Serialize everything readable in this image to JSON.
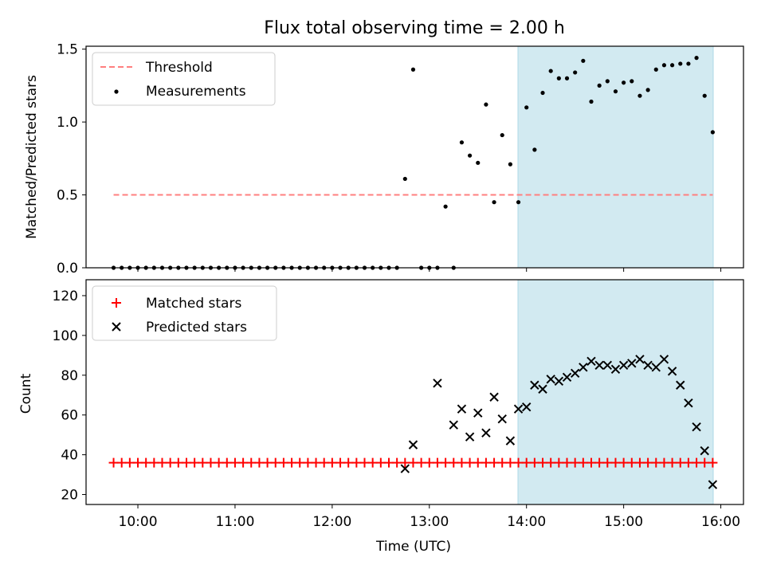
{
  "chart_data": [
    {
      "type": "scatter",
      "title": "Flux total observing time = 2.00 h",
      "ylabel": "Matched/Predicted stars",
      "xlabel": "",
      "ylim": [
        0,
        1.52
      ],
      "y_ticks": [
        "0.0",
        "0.5",
        "1.0",
        "1.5"
      ],
      "y_tick_values": [
        0,
        0.5,
        1.0,
        1.5
      ],
      "legend": {
        "placement": "upper-left",
        "entries": [
          "Threshold",
          "Measurements"
        ]
      },
      "shaded_region": {
        "x_start": "13:55",
        "x_end": "15:55",
        "color": "#add8e6"
      },
      "threshold": {
        "name": "Threshold",
        "value": 0.5,
        "x_start": "09:45",
        "x_end": "15:55",
        "color": "#ff7f7f"
      },
      "series": [
        {
          "name": "Measurements",
          "color": "#000000",
          "x": [
            "09:45",
            "09:50",
            "09:55",
            "10:00",
            "10:05",
            "10:10",
            "10:15",
            "10:20",
            "10:25",
            "10:30",
            "10:35",
            "10:40",
            "10:45",
            "10:50",
            "10:55",
            "11:00",
            "11:05",
            "11:10",
            "11:15",
            "11:20",
            "11:25",
            "11:30",
            "11:35",
            "11:40",
            "11:45",
            "11:50",
            "11:55",
            "12:00",
            "12:05",
            "12:10",
            "12:15",
            "12:20",
            "12:25",
            "12:30",
            "12:35",
            "12:40",
            "12:45",
            "12:50",
            "12:55",
            "13:00",
            "13:05",
            "13:10",
            "13:15",
            "13:20",
            "13:25",
            "13:30",
            "13:35",
            "13:40",
            "13:45",
            "13:50",
            "13:55",
            "14:00",
            "14:05",
            "14:10",
            "14:15",
            "14:20",
            "14:25",
            "14:30",
            "14:35",
            "14:40",
            "14:45",
            "14:50",
            "14:55",
            "15:00",
            "15:05",
            "15:10",
            "15:15",
            "15:20",
            "15:25",
            "15:30",
            "15:35",
            "15:40",
            "15:45",
            "15:50",
            "15:55"
          ],
          "values": [
            0,
            0,
            0,
            0,
            0,
            0,
            0,
            0,
            0,
            0,
            0,
            0,
            0,
            0,
            0,
            0,
            0,
            0,
            0,
            0,
            0,
            0,
            0,
            0,
            0,
            0,
            0,
            0,
            0,
            0,
            0,
            0,
            0,
            0,
            0,
            0,
            0.61,
            1.36,
            0,
            0,
            0,
            0.42,
            0,
            0.86,
            0.77,
            0.72,
            1.12,
            0.45,
            0.91,
            0.71,
            0.45,
            1.1,
            0.81,
            1.2,
            1.35,
            1.3,
            1.3,
            1.34,
            1.42,
            1.14,
            1.25,
            1.28,
            1.21,
            1.27,
            1.28,
            1.18,
            1.22,
            1.36,
            1.39,
            1.39,
            1.4,
            1.4,
            1.44,
            1.18,
            0.93
          ]
        }
      ]
    },
    {
      "type": "scatter",
      "title": "",
      "xlabel": "Time (UTC)",
      "ylabel": "Count",
      "xlim": [
        "09:28",
        "16:14"
      ],
      "ylim": [
        15,
        128
      ],
      "x_ticks": [
        "10:00",
        "11:00",
        "12:00",
        "13:00",
        "14:00",
        "15:00",
        "16:00"
      ],
      "y_ticks": [
        "20",
        "40",
        "60",
        "80",
        "100",
        "120"
      ],
      "y_tick_values": [
        20,
        40,
        60,
        80,
        100,
        120
      ],
      "legend": {
        "placement": "upper-left",
        "entries": [
          "Matched stars",
          "Predicted stars"
        ]
      },
      "shaded_region": {
        "x_start": "13:55",
        "x_end": "15:55",
        "color": "#add8e6"
      },
      "series": [
        {
          "name": "Matched stars",
          "marker": "+",
          "color": "#ff0000",
          "x": [
            "09:45",
            "09:50",
            "09:55",
            "10:00",
            "10:05",
            "10:10",
            "10:15",
            "10:20",
            "10:25",
            "10:30",
            "10:35",
            "10:40",
            "10:45",
            "10:50",
            "10:55",
            "11:00",
            "11:05",
            "11:10",
            "11:15",
            "11:20",
            "11:25",
            "11:30",
            "11:35",
            "11:40",
            "11:45",
            "11:50",
            "11:55",
            "12:00",
            "12:05",
            "12:10",
            "12:15",
            "12:20",
            "12:25",
            "12:30",
            "12:35",
            "12:40",
            "12:45",
            "12:50",
            "12:55",
            "13:00",
            "13:05",
            "13:10",
            "13:15",
            "13:20",
            "13:25",
            "13:30",
            "13:35",
            "13:40",
            "13:45",
            "13:50",
            "13:55",
            "14:00",
            "14:05",
            "14:10",
            "14:15",
            "14:20",
            "14:25",
            "14:30",
            "14:35",
            "14:40",
            "14:45",
            "14:50",
            "14:55",
            "15:00",
            "15:05",
            "15:10",
            "15:15",
            "15:20",
            "15:25",
            "15:30",
            "15:35",
            "15:40",
            "15:45",
            "15:50",
            "15:55"
          ],
          "values": [
            36,
            36,
            36,
            36,
            36,
            36,
            36,
            36,
            36,
            36,
            36,
            36,
            36,
            36,
            36,
            36,
            36,
            36,
            36,
            36,
            36,
            36,
            36,
            36,
            36,
            36,
            36,
            36,
            36,
            36,
            36,
            36,
            36,
            36,
            36,
            36,
            36,
            36,
            36,
            36,
            36,
            36,
            36,
            36,
            36,
            36,
            36,
            36,
            36,
            36,
            36,
            36,
            36,
            36,
            36,
            36,
            36,
            36,
            36,
            36,
            36,
            36,
            36,
            36,
            36,
            36,
            36,
            36,
            36,
            36,
            36,
            36,
            36,
            36,
            36
          ]
        },
        {
          "name": "Predicted stars",
          "marker": "x",
          "color": "#000000",
          "x": [
            "12:45",
            "12:50",
            "13:05",
            "13:15",
            "13:20",
            "13:25",
            "13:30",
            "13:35",
            "13:40",
            "13:45",
            "13:50",
            "13:55",
            "14:00",
            "14:05",
            "14:10",
            "14:15",
            "14:20",
            "14:25",
            "14:30",
            "14:35",
            "14:40",
            "14:45",
            "14:50",
            "14:55",
            "15:00",
            "15:05",
            "15:10",
            "15:15",
            "15:20",
            "15:25",
            "15:30",
            "15:35",
            "15:40",
            "15:45",
            "15:50",
            "15:55"
          ],
          "values": [
            33,
            45,
            76,
            55,
            63,
            49,
            61,
            51,
            69,
            58,
            47,
            63,
            64,
            75,
            73,
            78,
            77,
            79,
            81,
            84,
            87,
            85,
            85,
            83,
            85,
            86,
            88,
            85,
            84,
            88,
            82,
            75,
            66,
            54,
            42,
            25
          ]
        }
      ]
    }
  ]
}
